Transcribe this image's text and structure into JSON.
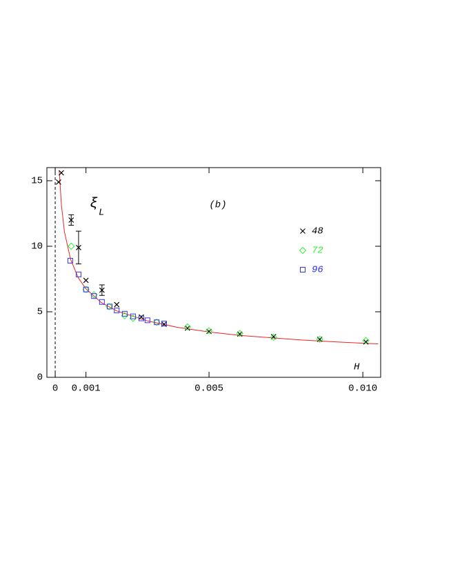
{
  "chart_data": {
    "type": "scatter",
    "title": "(b)",
    "annotation": {
      "symbol": "ξ",
      "subscript": "L"
    },
    "x_label": "H",
    "xlim": [
      -0.00027,
      0.01058
    ],
    "ylim": [
      0,
      16
    ],
    "xticks": [
      0,
      0.001,
      0.005,
      {
        "value": 0.01,
        "label": "0.010"
      }
    ],
    "yticks": [
      0,
      5,
      10,
      15
    ],
    "zero_line": true,
    "series": [
      {
        "name": "48",
        "color": "#000000",
        "marker": "cross",
        "x": [
          0.00011,
          0.0002,
          0.00052,
          0.00076,
          0.001,
          0.00152,
          0.002,
          0.0028,
          0.00354,
          0.0043,
          0.005,
          0.006,
          0.0071,
          0.0086,
          0.0101
        ],
        "values": [
          14.9,
          15.6,
          12.0,
          9.9,
          7.4,
          6.65,
          5.55,
          4.6,
          4.05,
          3.75,
          3.5,
          3.3,
          3.1,
          2.9,
          2.7
        ],
        "errors": [
          null,
          null,
          0.4,
          1.25,
          null,
          0.4,
          null,
          null,
          null,
          null,
          null,
          null,
          null,
          null,
          null
        ]
      },
      {
        "name": "72",
        "color": "#33ee33",
        "marker": "diamond",
        "x": [
          0.00052,
          0.001,
          0.00126,
          0.00175,
          0.00226,
          0.00253,
          0.0033,
          0.0043,
          0.005,
          0.006,
          0.0071,
          0.0086,
          0.0101
        ],
        "values": [
          10.0,
          6.7,
          6.3,
          5.4,
          4.7,
          4.5,
          4.2,
          3.85,
          3.55,
          3.35,
          3.05,
          2.9,
          2.8
        ]
      },
      {
        "name": "96",
        "color": "#3333ee",
        "marker": "square",
        "x": [
          0.00049,
          0.00076,
          0.001,
          0.00126,
          0.00152,
          0.00177,
          0.002,
          0.00226,
          0.00253,
          0.0028,
          0.003,
          0.0033,
          0.00354
        ],
        "values": [
          8.9,
          7.85,
          6.7,
          6.2,
          5.75,
          5.4,
          5.1,
          4.85,
          4.65,
          4.5,
          4.35,
          4.2,
          4.1
        ]
      }
    ],
    "curve": {
      "color": "#ee2222",
      "x": [
        0.00013,
        0.0002,
        0.0003,
        0.0005,
        0.00075,
        0.001,
        0.0015,
        0.002,
        0.003,
        0.004,
        0.005,
        0.006,
        0.007,
        0.008,
        0.009,
        0.01,
        0.0105
      ],
      "values": [
        15.8,
        13.2,
        11.1,
        9.0,
        7.6,
        6.75,
        5.7,
        5.07,
        4.3,
        3.8,
        3.46,
        3.2,
        3.02,
        2.85,
        2.72,
        2.6,
        2.55
      ]
    }
  }
}
